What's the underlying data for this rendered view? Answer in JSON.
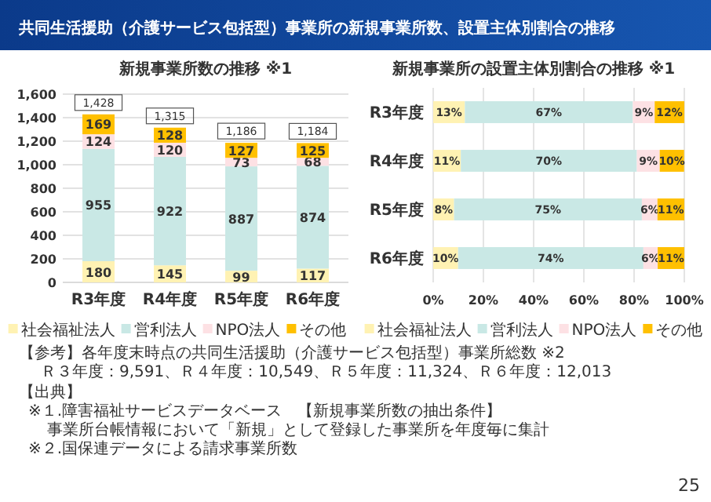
{
  "chart_data": [
    {
      "type": "bar",
      "stacked": true,
      "title": "新規事業所数の推移 ※1",
      "categories": [
        "R3年度",
        "R4年度",
        "R5年度",
        "R6年度"
      ],
      "series": [
        {
          "name": "社会福祉法人",
          "color": "#fff2b3",
          "values": [
            180,
            145,
            99,
            117
          ]
        },
        {
          "name": "営利法人",
          "color": "#c9e8e5",
          "values": [
            955,
            922,
            887,
            874
          ]
        },
        {
          "name": "NPO法人",
          "color": "#fde1e4",
          "values": [
            124,
            120,
            73,
            68
          ]
        },
        {
          "name": "その他",
          "color": "#ffc000",
          "values": [
            169,
            128,
            127,
            125
          ]
        }
      ],
      "totals": [
        "1,428",
        "1,315",
        "1,186",
        "1,184"
      ],
      "data_labels": true,
      "ylim": [
        0,
        1600
      ],
      "yticks": [
        0,
        200,
        400,
        600,
        800,
        {
          "value": 1000,
          "label": "1,000"
        },
        {
          "value": 1200,
          "label": "1,200"
        },
        {
          "value": 1400,
          "label": "1,400"
        },
        {
          "value": 1600,
          "label": "1,600"
        }
      ],
      "grid": "y",
      "legend": "bottom",
      "annotations": [
        "共同生活援助（介護サービス包括型）事業所の新規事業所数、設置主体別割合の推移",
        "【参考】各年度末時点の共同生活援助（介護サービス包括型）事業所総数 ※2",
        "Ｒ３年度：9,591、Ｒ４年度：10,549、Ｒ５年度：11,324、Ｒ６年度：12,013",
        "【出典】",
        "※１.障害福祉サービスデータベース　【新規事業所数の抽出条件】事業所台帳情報において「新規」として登録した事業所を年度毎に集計",
        "※２.国保連データによる請求事業所数",
        "25"
      ]
    },
    {
      "type": "bar",
      "stacked": true,
      "orientation": "horizontal",
      "title": "新規事業所の設置主体別割合の推移 ※1",
      "categories": [
        "R3年度",
        "R4年度",
        "R5年度",
        "R6年度"
      ],
      "series": [
        {
          "name": "社会福祉法人",
          "color": "#fff2b3",
          "values": [
            12.6,
            11.0,
            8.3,
            9.9
          ],
          "value_labels": [
            "13%",
            "11%",
            "8%",
            "10%"
          ]
        },
        {
          "name": "営利法人",
          "color": "#c9e8e5",
          "values": [
            66.9,
            70.1,
            74.8,
            73.8
          ],
          "value_labels": [
            "67%",
            "70%",
            "75%",
            "74%"
          ]
        },
        {
          "name": "NPO法人",
          "color": "#fde1e4",
          "values": [
            8.7,
            9.1,
            6.2,
            5.7
          ],
          "value_labels": [
            "9%",
            "9%",
            "6%",
            "6%"
          ]
        },
        {
          "name": "その他",
          "color": "#ffc000",
          "values": [
            11.8,
            9.7,
            10.7,
            10.6
          ],
          "value_labels": [
            "12%",
            "10%",
            "11%",
            "11%"
          ]
        }
      ],
      "xlim": [
        0,
        100
      ],
      "xticks": [
        {
          "value": 0,
          "label": "0%"
        },
        {
          "value": 20,
          "label": "20%"
        },
        {
          "value": 40,
          "label": "40%"
        },
        {
          "value": 60,
          "label": "60%"
        },
        {
          "value": 80,
          "label": "80%"
        },
        {
          "value": 100,
          "label": "100%"
        }
      ],
      "grid": "x",
      "legend": "bottom"
    }
  ]
}
